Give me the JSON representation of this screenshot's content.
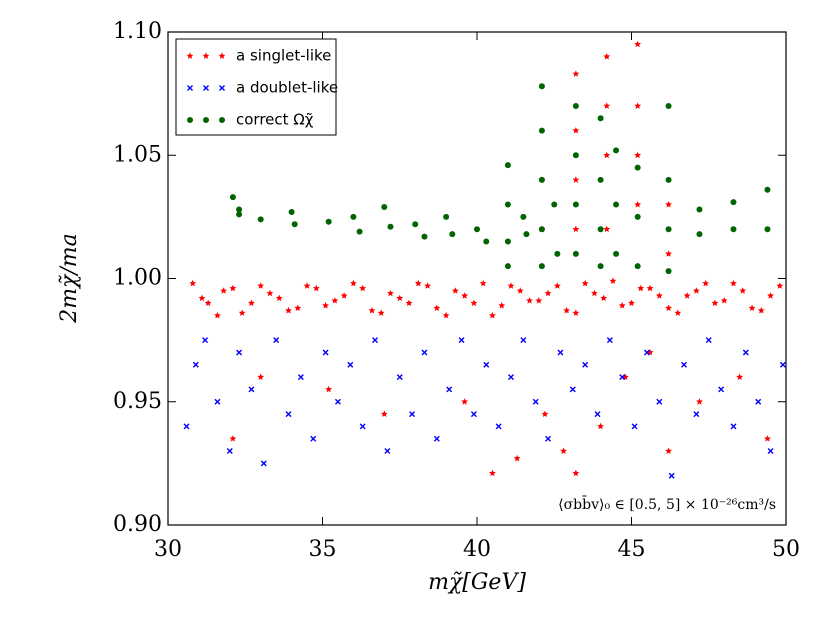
{
  "chart_data": {
    "type": "scatter",
    "xlabel": "mχ̃[GeV]",
    "ylabel": "2mχ̃/ma",
    "annotation": "⟨σbb̄v⟩₀ ∈ [0.5, 5] × 10⁻²⁶cm³/s",
    "xlim": [
      30,
      50
    ],
    "ylim": [
      0.9,
      1.1
    ],
    "xticks": [
      30,
      35,
      40,
      45,
      50
    ],
    "yticks": [
      {
        "value": 0.9,
        "label": "0.90"
      },
      {
        "value": 0.95,
        "label": "0.95"
      },
      {
        "value": 1.0,
        "label": "1.00"
      },
      {
        "value": 1.05,
        "label": "1.05"
      },
      {
        "value": 1.1,
        "label": "1.10"
      }
    ],
    "legend": "upper left",
    "series": [
      {
        "name": "a singlet-like",
        "color": "#ff0000",
        "marker": "star",
        "x": [
          30.8,
          31.3,
          31.8,
          32.4,
          33.0,
          33.6,
          34.2,
          34.8,
          35.4,
          36.0,
          36.6,
          37.2,
          37.8,
          38.4,
          39.0,
          39.6,
          40.2,
          40.8,
          41.4,
          42.0,
          42.6,
          43.2,
          43.8,
          44.4,
          45.0,
          45.6,
          46.2,
          46.8,
          47.4,
          48.0,
          48.6,
          49.2,
          49.8,
          31.1,
          31.6,
          32.1,
          32.7,
          33.3,
          33.9,
          34.5,
          35.1,
          35.7,
          36.3,
          36.9,
          37.5,
          38.1,
          38.7,
          39.3,
          39.9,
          40.5,
          41.1,
          41.7,
          42.3,
          42.9,
          43.5,
          44.1,
          44.7,
          45.3,
          45.9,
          46.5,
          47.1,
          47.7,
          48.3,
          48.9,
          49.5,
          32.1,
          33.0,
          35.2,
          37.0,
          39.6,
          40.5,
          41.3,
          42.2,
          42.8,
          43.2,
          44.0,
          44.8,
          45.6,
          46.2,
          47.2,
          49.4,
          48.5,
          43.2,
          43.2,
          43.2,
          43.2,
          44.2,
          44.2,
          44.2,
          44.2,
          45.2,
          45.2,
          45.2,
          45.2,
          42.1,
          42.1,
          46.2,
          46.2
        ],
        "y": [
          0.998,
          0.99,
          0.995,
          0.986,
          0.997,
          0.992,
          0.988,
          0.996,
          0.991,
          0.998,
          0.987,
          0.994,
          0.99,
          0.997,
          0.985,
          0.993,
          0.998,
          0.989,
          0.995,
          0.991,
          0.997,
          0.986,
          0.994,
          0.999,
          0.99,
          0.996,
          0.988,
          0.993,
          0.998,
          0.991,
          0.995,
          0.987,
          0.997,
          0.992,
          0.985,
          0.996,
          0.99,
          0.994,
          0.987,
          0.997,
          0.989,
          0.993,
          0.996,
          0.986,
          0.992,
          0.998,
          0.988,
          0.995,
          0.99,
          0.985,
          0.997,
          0.991,
          0.994,
          0.987,
          0.998,
          0.992,
          0.989,
          0.996,
          0.993,
          0.986,
          0.995,
          0.99,
          0.998,
          0.988,
          0.993,
          0.935,
          0.96,
          0.955,
          0.945,
          0.95,
          0.921,
          0.927,
          0.945,
          0.93,
          0.921,
          0.94,
          0.96,
          0.97,
          0.93,
          0.95,
          0.935,
          0.96,
          1.083,
          1.06,
          1.04,
          1.02,
          1.09,
          1.07,
          1.05,
          1.02,
          1.095,
          1.07,
          1.05,
          1.03,
          1.04,
          1.02,
          1.03,
          1.01
        ]
      },
      {
        "name": "a doublet-like",
        "color": "#0000ff",
        "marker": "x",
        "x": [
          30.6,
          30.9,
          31.2,
          31.6,
          32.0,
          32.3,
          32.7,
          33.1,
          33.5,
          33.9,
          34.3,
          34.7,
          35.1,
          35.5,
          35.9,
          36.3,
          36.7,
          37.1,
          37.5,
          37.9,
          38.3,
          38.7,
          39.1,
          39.5,
          39.9,
          40.3,
          40.7,
          41.1,
          41.5,
          41.9,
          42.3,
          42.7,
          43.1,
          43.5,
          43.9,
          44.3,
          44.7,
          45.1,
          45.5,
          45.9,
          46.3,
          46.7,
          47.1,
          47.5,
          47.9,
          48.3,
          48.7,
          49.1,
          49.5,
          49.9
        ],
        "y": [
          0.94,
          0.965,
          0.975,
          0.95,
          0.93,
          0.97,
          0.955,
          0.925,
          0.975,
          0.945,
          0.96,
          0.935,
          0.97,
          0.95,
          0.965,
          0.94,
          0.975,
          0.93,
          0.96,
          0.945,
          0.97,
          0.935,
          0.955,
          0.975,
          0.945,
          0.965,
          0.94,
          0.96,
          0.975,
          0.95,
          0.935,
          0.97,
          0.955,
          0.965,
          0.945,
          0.975,
          0.96,
          0.94,
          0.97,
          0.95,
          0.92,
          0.965,
          0.945,
          0.975,
          0.955,
          0.94,
          0.97,
          0.95,
          0.93,
          0.965
        ]
      },
      {
        "name": "correct Ωχ̃",
        "color": "#006400",
        "marker": "circle",
        "x": [
          32.1,
          32.3,
          32.3,
          33.0,
          34.0,
          34.1,
          35.2,
          36.0,
          36.2,
          37.0,
          37.2,
          38.0,
          38.3,
          39.0,
          39.2,
          40.0,
          40.3,
          41.0,
          41.0,
          41.0,
          41.0,
          41.5,
          41.6,
          42.1,
          42.1,
          42.1,
          42.1,
          42.1,
          42.5,
          42.6,
          43.2,
          43.2,
          43.2,
          43.2,
          44.0,
          44.0,
          44.0,
          44.0,
          44.5,
          44.5,
          44.5,
          45.2,
          45.2,
          45.2,
          46.2,
          46.2,
          46.2,
          46.2,
          47.2,
          47.2,
          48.3,
          48.3,
          49.4,
          49.4
        ],
        "y": [
          1.033,
          1.028,
          1.026,
          1.024,
          1.027,
          1.022,
          1.023,
          1.025,
          1.019,
          1.029,
          1.021,
          1.022,
          1.017,
          1.025,
          1.018,
          1.02,
          1.015,
          1.046,
          1.03,
          1.015,
          1.005,
          1.025,
          1.018,
          1.078,
          1.06,
          1.04,
          1.02,
          1.005,
          1.03,
          1.01,
          1.07,
          1.05,
          1.03,
          1.01,
          1.065,
          1.04,
          1.02,
          1.005,
          1.052,
          1.03,
          1.01,
          1.045,
          1.025,
          1.005,
          1.07,
          1.04,
          1.02,
          1.003,
          1.028,
          1.018,
          1.031,
          1.02,
          1.036,
          1.02
        ]
      }
    ]
  }
}
